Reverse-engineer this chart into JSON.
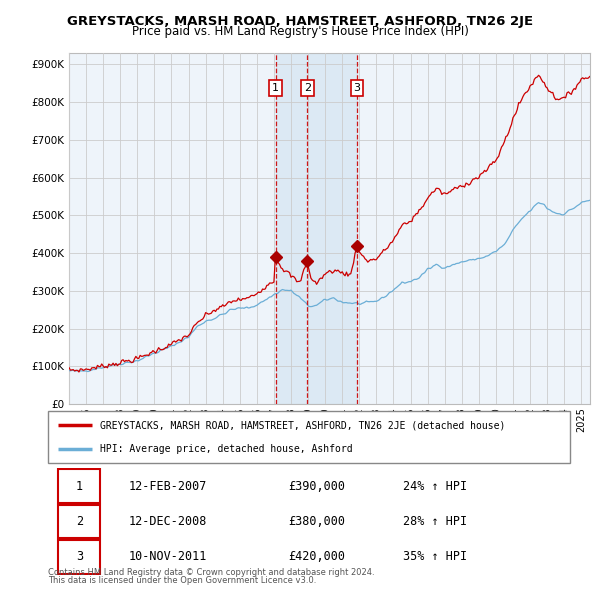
{
  "title": "GREYSTACKS, MARSH ROAD, HAMSTREET, ASHFORD, TN26 2JE",
  "subtitle": "Price paid vs. HM Land Registry's House Price Index (HPI)",
  "ylabel_ticks": [
    "£0",
    "£100K",
    "£200K",
    "£300K",
    "£400K",
    "£500K",
    "£600K",
    "£700K",
    "£800K",
    "£900K"
  ],
  "ytick_values": [
    0,
    100000,
    200000,
    300000,
    400000,
    500000,
    600000,
    700000,
    800000,
    900000
  ],
  "ylim": [
    0,
    930000
  ],
  "xlim_start": 1995.0,
  "xlim_end": 2025.5,
  "transactions": [
    {
      "label": "1",
      "date_num": 2007.1,
      "price": 390000,
      "date_str": "12-FEB-2007",
      "hpi_pct": "24%"
    },
    {
      "label": "2",
      "date_num": 2008.95,
      "price": 380000,
      "date_str": "12-DEC-2008",
      "hpi_pct": "28%"
    },
    {
      "label": "3",
      "date_num": 2011.87,
      "price": 420000,
      "date_str": "10-NOV-2011",
      "hpi_pct": "35%"
    }
  ],
  "hpi_line_color": "#6baed6",
  "hpi_area_color": "#ddeeff",
  "price_line_color": "#cc0000",
  "marker_color": "#aa0000",
  "dashed_line_color": "#cc0000",
  "background_color": "#ffffff",
  "chart_bg_color": "#eef4fa",
  "grid_color": "#cccccc",
  "footnote1": "Contains HM Land Registry data © Crown copyright and database right 2024.",
  "footnote2": "This data is licensed under the Open Government Licence v3.0.",
  "legend_label_red": "GREYSTACKS, MARSH ROAD, HAMSTREET, ASHFORD, TN26 2JE (detached house)",
  "legend_label_blue": "HPI: Average price, detached house, Ashford",
  "table_rows": [
    [
      "1",
      "12-FEB-2007",
      "£390,000",
      "24% ↑ HPI"
    ],
    [
      "2",
      "12-DEC-2008",
      "£380,000",
      "28% ↑ HPI"
    ],
    [
      "3",
      "10-NOV-2011",
      "£420,000",
      "35% ↑ HPI"
    ]
  ]
}
